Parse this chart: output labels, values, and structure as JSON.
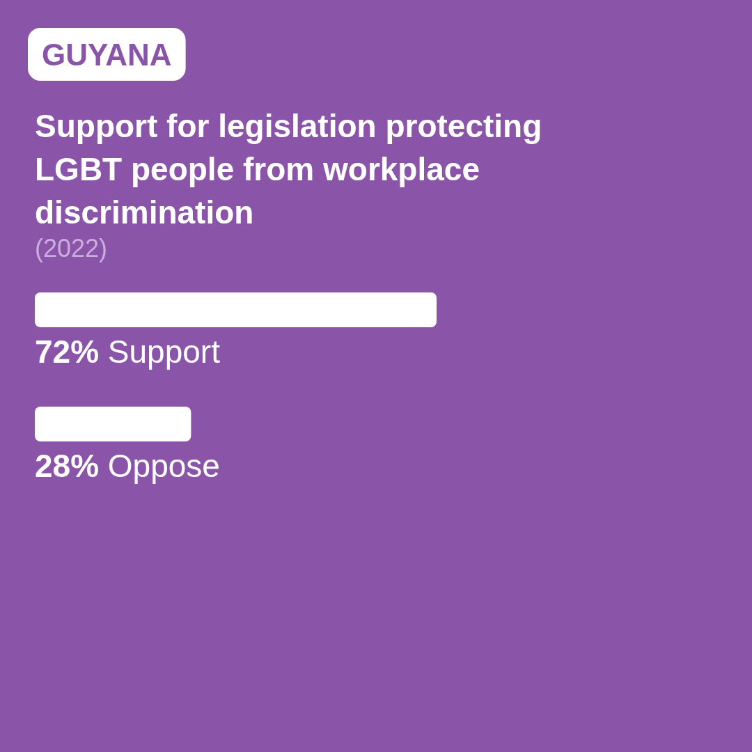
{
  "chart_data": {
    "type": "bar",
    "orientation": "horizontal",
    "subtitle": "GUYANA",
    "title": "Support for legislation protecting\nLGBT people from workplace\ndiscrimination",
    "annotations": [
      "(2022)"
    ],
    "categories": [
      "Support",
      "Oppose"
    ],
    "values": [
      72,
      28
    ],
    "color": "#ffffff",
    "value_labels": [
      "72%",
      "28%"
    ]
  }
}
